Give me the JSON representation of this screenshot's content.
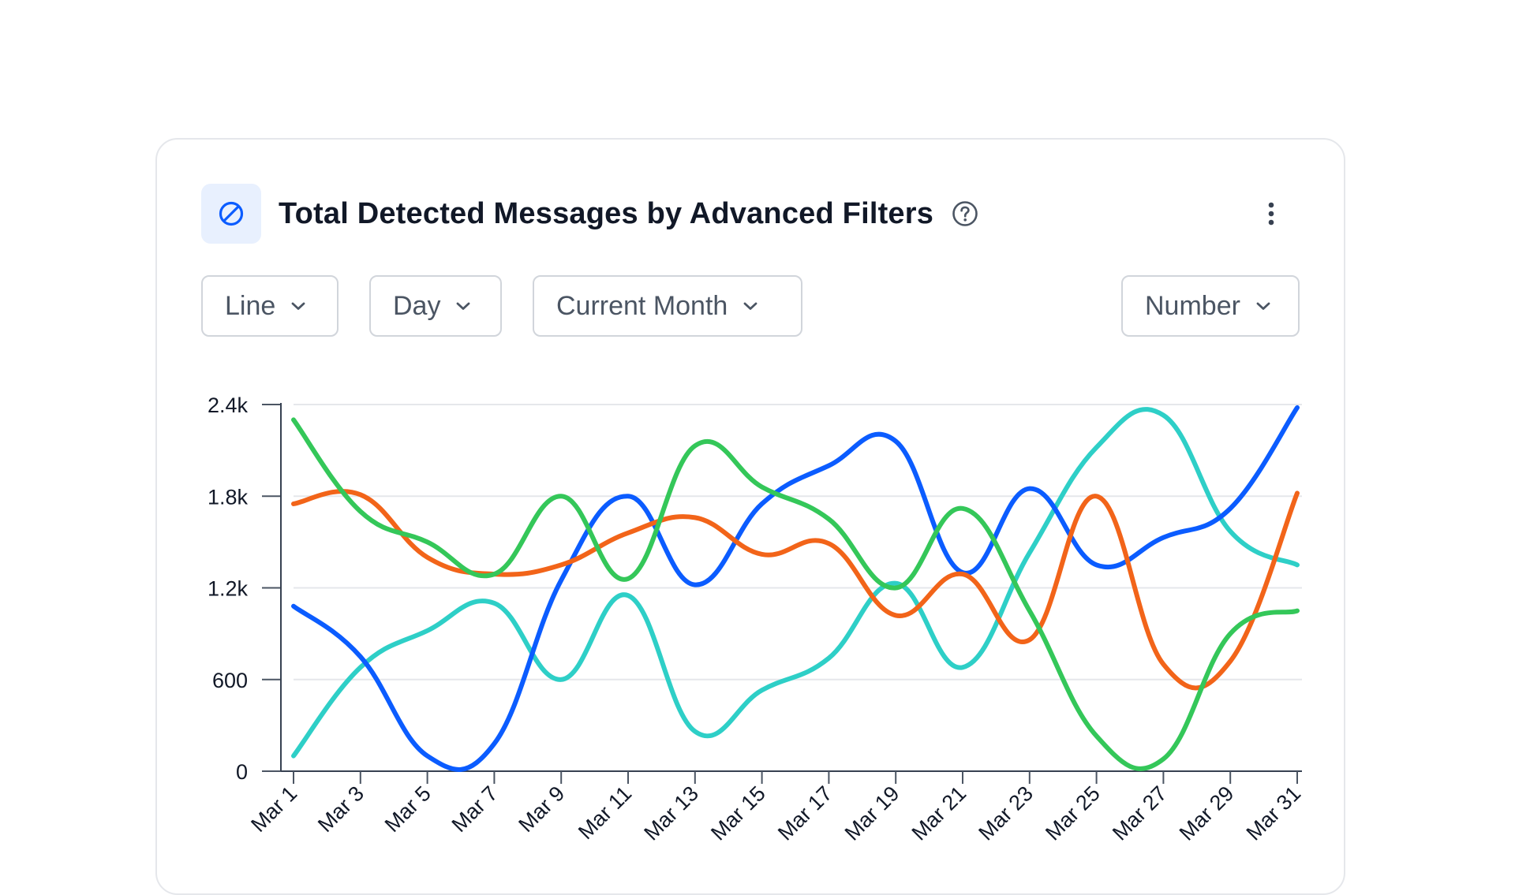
{
  "card": {
    "title": "Total Detected Messages by Advanced Filters",
    "title_icon": "block-icon",
    "help_icon": "help-circle-icon",
    "menu_icon": "more-vertical-icon"
  },
  "controls": {
    "chart_type": "Line",
    "interval": "Day",
    "period": "Current Month",
    "metric": "Number"
  },
  "colors": {
    "accent": "#0b5cff",
    "icon_tile_bg": "#e8f0fe",
    "blue": "#0b5cff",
    "orange": "#f26419",
    "green": "#34c759",
    "teal": "#2ecfc7"
  },
  "chart_data": {
    "type": "line",
    "title": "",
    "xlabel": "",
    "ylabel": "",
    "x": [
      "Mar 1",
      "Mar 3",
      "Mar 5",
      "Mar 7",
      "Mar 9",
      "Mar 11",
      "Mar 13",
      "Mar 15",
      "Mar 17",
      "Mar 19",
      "Mar 21",
      "Mar 23",
      "Mar 25",
      "Mar 27",
      "Mar 29",
      "Mar 31"
    ],
    "ylim": [
      0,
      2400
    ],
    "yticks": [
      0,
      600,
      1200,
      1800,
      2400
    ],
    "ytick_labels": [
      "0",
      "600",
      "1.2k",
      "1.8k",
      "2.4k"
    ],
    "grid": true,
    "legend": "none",
    "series": [
      {
        "color": "#0b5cff",
        "values": [
          1080,
          750,
          100,
          180,
          1250,
          1800,
          1220,
          1750,
          2000,
          2160,
          1300,
          1850,
          1350,
          1530,
          1720,
          2380
        ]
      },
      {
        "color": "#f26419",
        "values": [
          1750,
          1810,
          1400,
          1290,
          1350,
          1560,
          1660,
          1420,
          1490,
          1020,
          1290,
          860,
          1800,
          700,
          720,
          1820
        ]
      },
      {
        "color": "#34c759",
        "values": [
          2300,
          1700,
          1500,
          1290,
          1800,
          1260,
          2130,
          1860,
          1650,
          1200,
          1720,
          1050,
          230,
          80,
          900,
          1050
        ]
      },
      {
        "color": "#2ecfc7",
        "values": [
          100,
          680,
          920,
          1100,
          600,
          1150,
          260,
          530,
          740,
          1230,
          680,
          1430,
          2120,
          2330,
          1570,
          1350
        ]
      }
    ]
  }
}
